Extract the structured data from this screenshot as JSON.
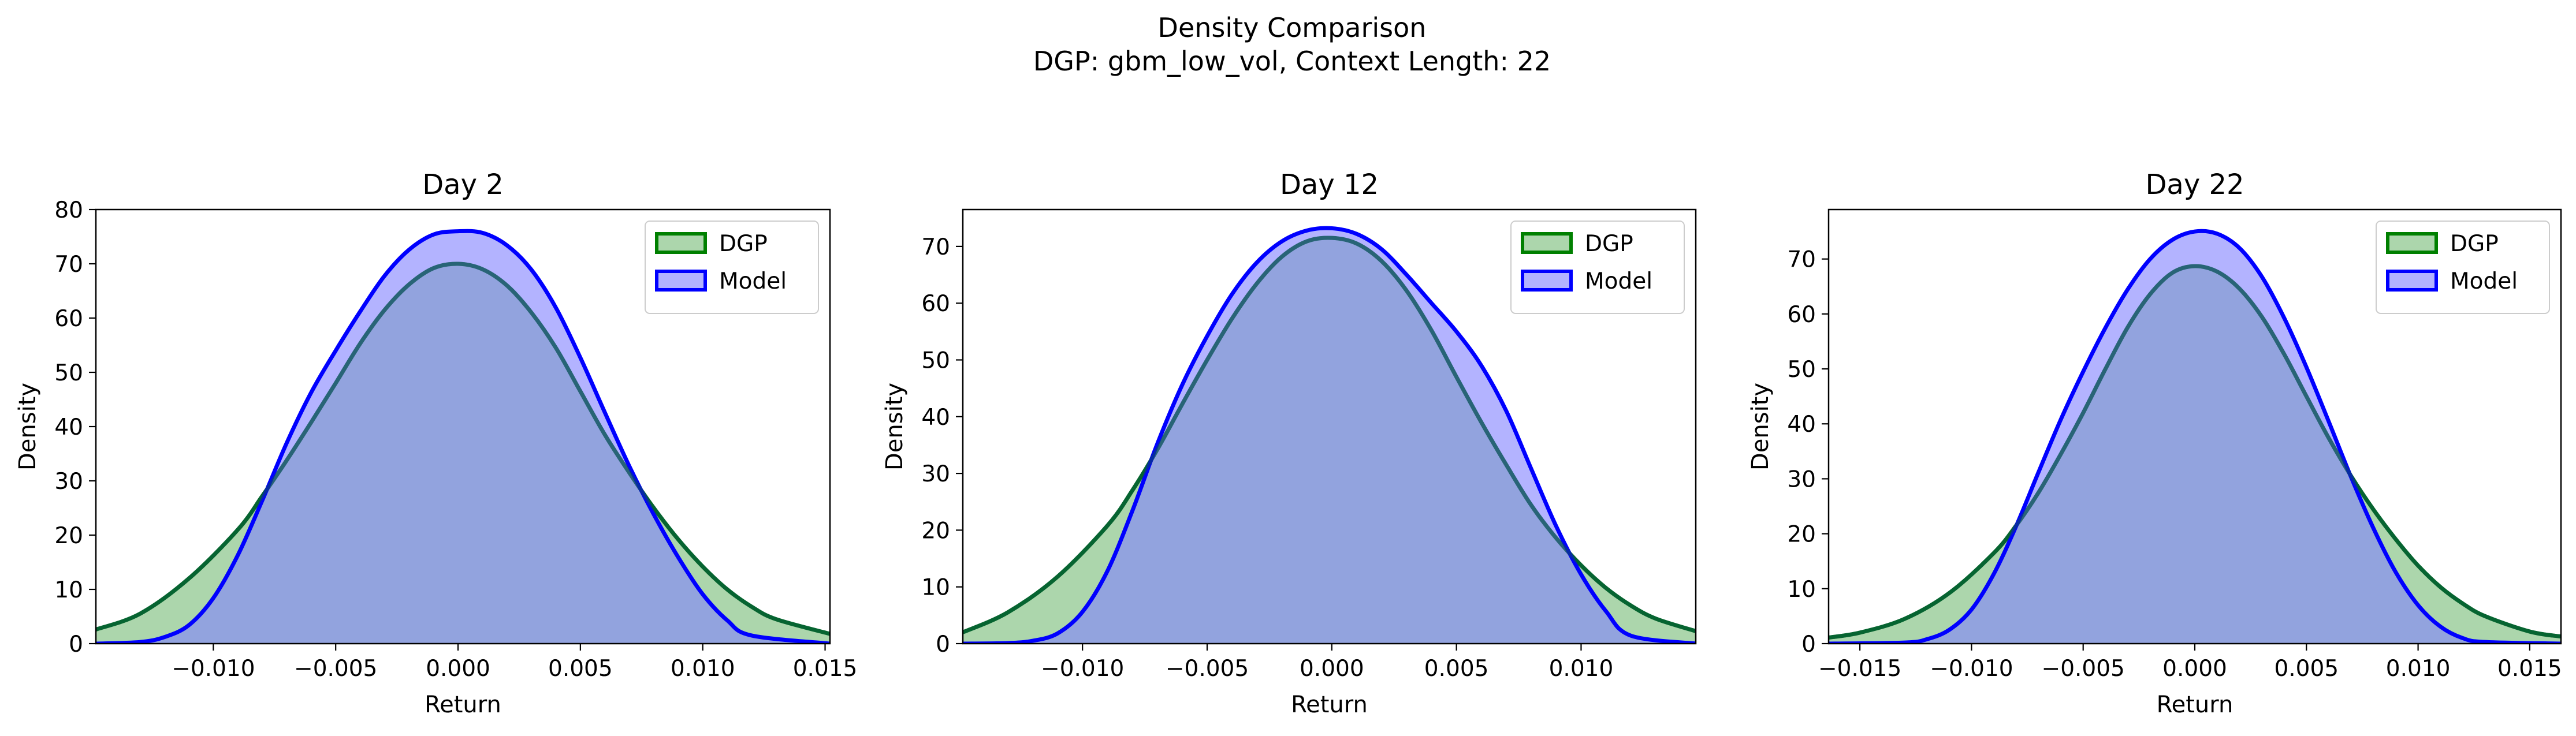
{
  "figure": {
    "title_line1": "Density Comparison",
    "title_line2": "DGP: gbm_low_vol, Context Length: 22"
  },
  "colors": {
    "dgp_line": "#008000",
    "dgp_fill": "#80c080",
    "model_line": "#0000ff",
    "model_fill": "#8080ff",
    "overlap_fill": "#7f97c8"
  },
  "chart_data": [
    {
      "type": "area",
      "title": "Day 2",
      "xlabel": "Return",
      "ylabel": "Density",
      "xlim": [
        -0.0148,
        0.0152
      ],
      "ylim": [
        0,
        80
      ],
      "xticks": [
        -0.01,
        -0.005,
        0.0,
        0.005,
        0.01,
        0.015
      ],
      "xticklabels": [
        "−0.010",
        "−0.005",
        "0.000",
        "0.005",
        "0.010",
        "0.015"
      ],
      "yticks": [
        0,
        10,
        20,
        30,
        40,
        50,
        60,
        70,
        80
      ],
      "yticklabels": [
        "0",
        "10",
        "20",
        "30",
        "40",
        "50",
        "60",
        "70",
        "80"
      ],
      "legend": {
        "position": "upper-right",
        "entries": [
          "DGP",
          "Model"
        ]
      },
      "series": [
        {
          "name": "DGP",
          "x": [
            -0.0148,
            -0.013,
            -0.011,
            -0.009,
            -0.008,
            -0.007,
            -0.006,
            -0.005,
            -0.004,
            -0.003,
            -0.002,
            -0.001,
            0.0,
            0.001,
            0.002,
            0.003,
            0.004,
            0.005,
            0.006,
            0.007,
            0.008,
            0.009,
            0.01,
            0.011,
            0.012,
            0.013,
            0.0152
          ],
          "y": [
            2.6,
            5.5,
            12.0,
            21.0,
            27.2,
            33.8,
            40.8,
            48.0,
            55.3,
            61.5,
            66.2,
            69.2,
            70.0,
            69.0,
            66.0,
            61.0,
            54.5,
            46.5,
            38.5,
            31.5,
            25.0,
            19.2,
            14.2,
            10.0,
            6.8,
            4.5,
            1.8
          ]
        },
        {
          "name": "Model",
          "x": [
            -0.0148,
            -0.013,
            -0.012,
            -0.011,
            -0.01,
            -0.009,
            -0.008,
            -0.007,
            -0.006,
            -0.005,
            -0.004,
            -0.003,
            -0.002,
            -0.001,
            0.0,
            0.001,
            0.002,
            0.003,
            0.004,
            0.005,
            0.006,
            0.007,
            0.008,
            0.009,
            0.01,
            0.011,
            0.012,
            0.0152
          ],
          "y": [
            0,
            0.3,
            1.2,
            3.4,
            8.4,
            16.3,
            26.4,
            37.0,
            46.3,
            54.0,
            61.2,
            67.8,
            72.6,
            75.4,
            76.0,
            75.7,
            73.4,
            68.9,
            61.9,
            52.7,
            42.6,
            32.7,
            23.8,
            15.9,
            9.1,
            4.3,
            1.5,
            0
          ]
        }
      ]
    },
    {
      "type": "area",
      "title": "Day 12",
      "xlabel": "Return",
      "ylabel": "Density",
      "xlim": [
        -0.0148,
        0.0146
      ],
      "ylim": [
        0,
        76.5
      ],
      "xticks": [
        -0.01,
        -0.005,
        0.0,
        0.005,
        0.01
      ],
      "xticklabels": [
        "−0.010",
        "−0.005",
        "0.000",
        "0.005",
        "0.010"
      ],
      "yticks": [
        0,
        10,
        20,
        30,
        40,
        50,
        60,
        70
      ],
      "yticklabels": [
        "0",
        "10",
        "20",
        "30",
        "40",
        "50",
        "60",
        "70"
      ],
      "legend": {
        "position": "upper-right",
        "entries": [
          "DGP",
          "Model"
        ]
      },
      "series": [
        {
          "name": "DGP",
          "x": [
            -0.0148,
            -0.013,
            -0.011,
            -0.009,
            -0.008,
            -0.007,
            -0.006,
            -0.005,
            -0.004,
            -0.003,
            -0.002,
            -0.001,
            0.0,
            0.001,
            0.002,
            0.003,
            0.004,
            0.005,
            0.006,
            0.007,
            0.008,
            0.009,
            0.01,
            0.011,
            0.012,
            0.013,
            0.0146
          ],
          "y": [
            2.0,
            5.5,
            11.8,
            20.8,
            27.0,
            34.2,
            42.2,
            50.0,
            57.3,
            63.5,
            68.2,
            70.9,
            71.5,
            70.5,
            67.4,
            62.2,
            55.2,
            47.0,
            39.0,
            31.5,
            24.4,
            18.6,
            13.8,
            9.8,
            6.7,
            4.4,
            2.2
          ]
        },
        {
          "name": "Model",
          "x": [
            -0.0148,
            -0.013,
            -0.012,
            -0.011,
            -0.01,
            -0.009,
            -0.008,
            -0.007,
            -0.006,
            -0.005,
            -0.004,
            -0.003,
            -0.002,
            -0.001,
            0.0,
            0.001,
            0.002,
            0.003,
            0.004,
            0.005,
            0.006,
            0.007,
            0.008,
            0.009,
            0.01,
            0.011,
            0.012,
            0.0146
          ],
          "y": [
            0,
            0.1,
            0.5,
            1.8,
            5.6,
            12.8,
            23.4,
            35.2,
            45.6,
            54.2,
            61.6,
            67.2,
            70.9,
            72.8,
            73.2,
            72.2,
            69.5,
            65.0,
            60.0,
            55.0,
            49.0,
            41.0,
            30.8,
            20.7,
            12.2,
            5.7,
            1.4,
            0
          ]
        }
      ]
    },
    {
      "type": "area",
      "title": "Day 22",
      "xlabel": "Return",
      "ylabel": "Density",
      "xlim": [
        -0.0164,
        0.0164
      ],
      "ylim": [
        0,
        79
      ],
      "xticks": [
        -0.015,
        -0.01,
        -0.005,
        0.0,
        0.005,
        0.01,
        0.015
      ],
      "xticklabels": [
        "−0.015",
        "−0.010",
        "−0.005",
        "0.000",
        "0.005",
        "0.010",
        "0.015"
      ],
      "yticks": [
        0,
        10,
        20,
        30,
        40,
        50,
        60,
        70
      ],
      "yticklabels": [
        "0",
        "10",
        "20",
        "30",
        "40",
        "50",
        "60",
        "70"
      ],
      "legend": {
        "position": "upper-right",
        "entries": [
          "DGP",
          "Model"
        ]
      },
      "series": [
        {
          "name": "DGP",
          "x": [
            -0.0164,
            -0.015,
            -0.013,
            -0.011,
            -0.009,
            -0.008,
            -0.007,
            -0.006,
            -0.005,
            -0.004,
            -0.003,
            -0.002,
            -0.001,
            0.0,
            0.001,
            0.002,
            0.003,
            0.004,
            0.005,
            0.006,
            0.007,
            0.008,
            0.009,
            0.01,
            0.011,
            0.012,
            0.013,
            0.015,
            0.0164
          ],
          "y": [
            1.1,
            2.0,
            4.5,
            9.2,
            16.5,
            21.5,
            27.5,
            34.5,
            42.0,
            50.0,
            57.6,
            63.6,
            67.5,
            68.7,
            67.7,
            64.6,
            59.5,
            52.7,
            45.0,
            37.4,
            30.5,
            24.4,
            19.0,
            14.2,
            10.3,
            7.3,
            5.0,
            2.2,
            1.3
          ]
        },
        {
          "name": "Model",
          "x": [
            -0.0164,
            -0.013,
            -0.012,
            -0.011,
            -0.01,
            -0.009,
            -0.008,
            -0.007,
            -0.006,
            -0.005,
            -0.004,
            -0.003,
            -0.002,
            -0.001,
            0.0,
            0.001,
            0.002,
            0.003,
            0.004,
            0.005,
            0.006,
            0.007,
            0.008,
            0.009,
            0.01,
            0.011,
            0.012,
            0.013,
            0.0164
          ],
          "y": [
            0,
            0.2,
            0.8,
            2.5,
            6.2,
            12.7,
            21.4,
            31.2,
            40.8,
            49.5,
            57.5,
            64.5,
            70.0,
            73.5,
            75.0,
            74.6,
            72.0,
            66.8,
            59.3,
            50.3,
            40.4,
            30.3,
            21.0,
            13.0,
            7.0,
            3.1,
            1.0,
            0.3,
            0
          ]
        }
      ]
    }
  ]
}
